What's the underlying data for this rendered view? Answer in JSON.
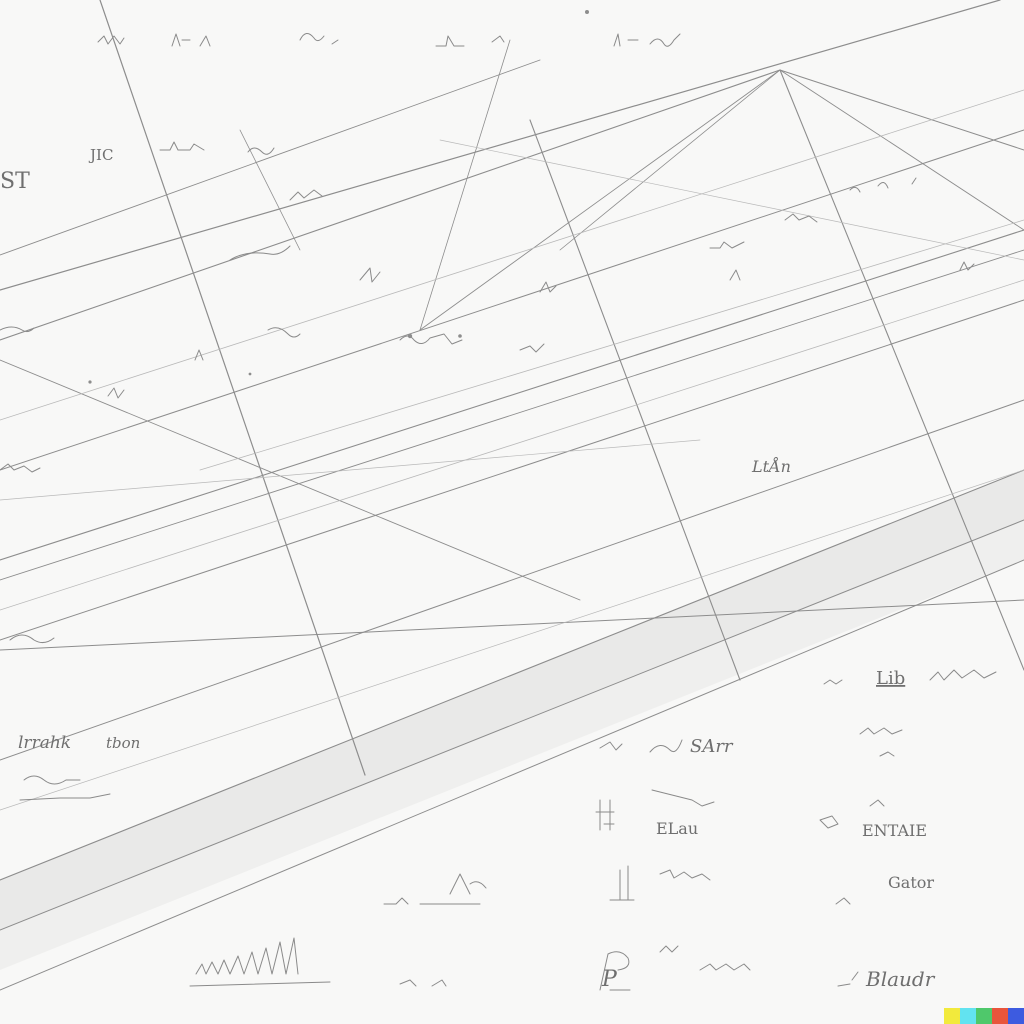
{
  "title": "",
  "labels": {
    "l1": "JIC",
    "l2": "ST",
    "l3": "LtÅn",
    "l4": "lrrahk",
    "l5": "tbon",
    "l6": "Lib",
    "l7": "SArr",
    "l8": "Blaudr",
    "l9": "P",
    "l10": "ELau",
    "l11": "ENTAIE",
    "l12": "Gator"
  },
  "colors": {
    "paper": "#f8f8f7",
    "pencil": "#8d8d8d",
    "band": "#e9e9e8"
  },
  "signature_swatches": [
    "#f2ea3c",
    "#62e3f0",
    "#4fc86b",
    "#e8553c",
    "#3d5be0"
  ]
}
